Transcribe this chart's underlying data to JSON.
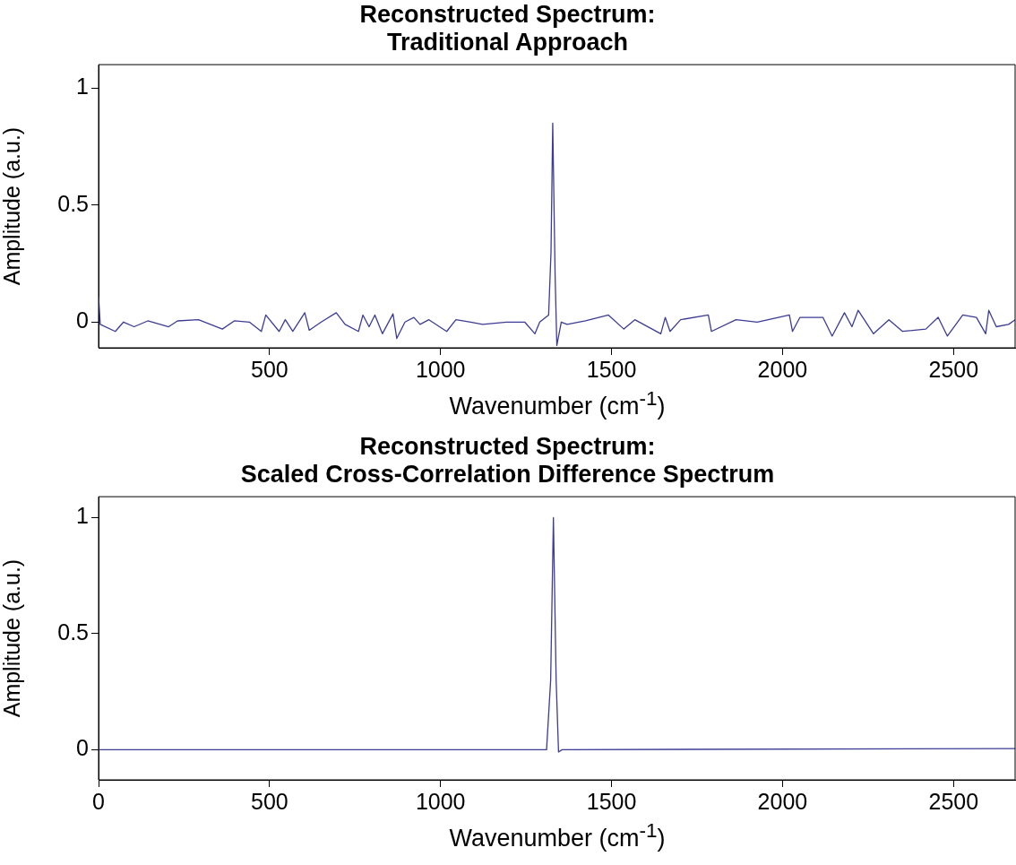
{
  "chart_data": [
    {
      "type": "line",
      "title": "Reconstructed Spectrum:\nTraditional Approach",
      "xlabel": "Wavenumber (cm$^{-1}$)",
      "ylabel": "Amplitude (a.u.)",
      "xlim": [
        0,
        2680
      ],
      "ylim": [
        -0.11,
        1.1
      ],
      "xticks": [
        500,
        1000,
        1500,
        2000,
        2500
      ],
      "yticks": [
        0,
        0.5,
        1
      ],
      "marker": "none",
      "line_style": "solid",
      "series": [
        {
          "color": "#3c3c96",
          "x": [
            0,
            5,
            49,
            73,
            104,
            144,
            205,
            231,
            292,
            362,
            397,
            441,
            476,
            489,
            528,
            546,
            568,
            603,
            616,
            651,
            695,
            721,
            760,
            773,
            791,
            808,
            830,
            861,
            872,
            896,
            922,
            940,
            966,
            1018,
            1045,
            1088,
            1123,
            1193,
            1246,
            1276,
            1290,
            1316,
            1323,
            1328,
            1335,
            1340,
            1353,
            1370,
            1424,
            1491,
            1536,
            1568,
            1644,
            1657,
            1671,
            1702,
            1783,
            1792,
            1864,
            1926,
            2020,
            2029,
            2051,
            2118,
            2145,
            2181,
            2203,
            2221,
            2266,
            2311,
            2351,
            2419,
            2455,
            2482,
            2527,
            2567,
            2594,
            2603,
            2625,
            2661,
            2680
          ],
          "values": [
            0.11,
            -0.01,
            -0.04,
            0,
            -0.02,
            0.005,
            -0.02,
            0.005,
            0.01,
            -0.03,
            0.005,
            0,
            -0.04,
            0.03,
            -0.04,
            0.01,
            -0.04,
            0.04,
            -0.035,
            0,
            0.04,
            -0.01,
            -0.04,
            0.03,
            -0.02,
            0.03,
            -0.05,
            0.035,
            -0.07,
            0,
            0.02,
            -0.01,
            0.01,
            -0.04,
            0.01,
            0,
            -0.01,
            0,
            0,
            -0.05,
            0,
            0.03,
            0.3,
            0.85,
            0.2,
            -0.1,
            0,
            -0.01,
            0.005,
            0.03,
            -0.03,
            0.01,
            -0.05,
            0.02,
            -0.04,
            0.01,
            0.03,
            -0.04,
            0.01,
            0,
            0.03,
            -0.04,
            0.02,
            0.02,
            -0.06,
            0.04,
            -0.02,
            0.05,
            -0.05,
            0.01,
            -0.04,
            -0.03,
            0.02,
            -0.06,
            0.03,
            0.02,
            -0.05,
            0.05,
            -0.02,
            -0.01,
            0.01
          ]
        }
      ]
    },
    {
      "type": "line",
      "title": "Reconstructed Spectrum:\nScaled Cross-Correlation Difference Spectrum",
      "xlabel": "Wavenumber (cm$^{-1}$)",
      "ylabel": "Amplitude (a.u.)",
      "xlim": [
        0,
        2680
      ],
      "ylim": [
        -0.13,
        1.09
      ],
      "xticks": [
        0,
        500,
        1000,
        1500,
        2000,
        2500
      ],
      "yticks": [
        0,
        0.5,
        1
      ],
      "marker": "none",
      "line_style": "solid",
      "series": [
        {
          "color": "#3c3c96",
          "x": [
            0,
            1310,
            1322,
            1330,
            1338,
            1345,
            1355,
            2680
          ],
          "values": [
            0,
            0,
            0.3,
            1.0,
            0.3,
            -0.01,
            0,
            0.005
          ]
        }
      ]
    }
  ]
}
